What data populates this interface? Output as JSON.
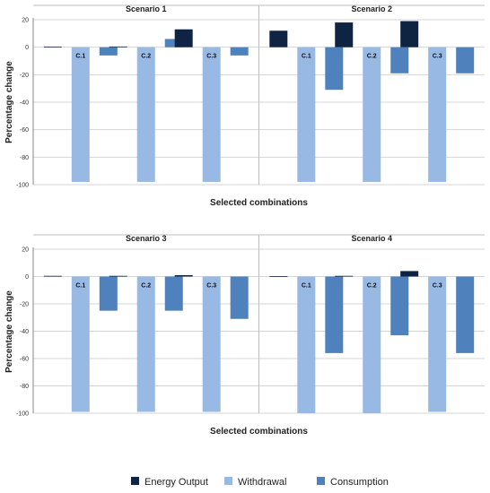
{
  "colors": {
    "energy_output": "#0f2443",
    "withdrawal": "#98b9e3",
    "consumption": "#4f81bd",
    "gridline": "#d4d4d4",
    "axis": "#888888",
    "divider": "#bdbdbd"
  },
  "legend": {
    "items": [
      {
        "label": "Energy Output",
        "color_key": "energy_output"
      },
      {
        "label": "Withdrawal",
        "color_key": "withdrawal"
      },
      {
        "label": "Consumption",
        "color_key": "consumption"
      }
    ]
  },
  "chart_data": [
    {
      "type": "bar",
      "ylabel": "Percentage change",
      "xlabel": "Selected combinations",
      "ylim": [
        -100,
        20
      ],
      "yticks": [
        20,
        0,
        -20,
        -40,
        -60,
        -80,
        -100
      ],
      "grid": true,
      "legend_position": "bottom",
      "panels": [
        {
          "title": "Scenario 1",
          "categories": [
            "C.1",
            "C.2",
            "C.3"
          ],
          "series": [
            {
              "name": "Energy Output",
              "values": [
                0.3,
                0.5,
                13
              ]
            },
            {
              "name": "Withdrawal",
              "values": [
                -98,
                -98,
                -98
              ]
            },
            {
              "name": "Consumption",
              "values": [
                -6,
                6,
                -6
              ]
            }
          ]
        },
        {
          "title": "Scenario 2",
          "categories": [
            "C.1",
            "C.2",
            "C.3"
          ],
          "series": [
            {
              "name": "Energy Output",
              "values": [
                12,
                18,
                19
              ]
            },
            {
              "name": "Withdrawal",
              "values": [
                -98,
                -98,
                -98
              ]
            },
            {
              "name": "Consumption",
              "values": [
                -31,
                -19,
                -19
              ]
            }
          ]
        }
      ]
    },
    {
      "type": "bar",
      "ylabel": "Percentage change",
      "xlabel": "Selected combinations",
      "ylim": [
        -100,
        20
      ],
      "yticks": [
        20,
        0,
        -20,
        -40,
        -60,
        -80,
        -100
      ],
      "grid": true,
      "legend_position": "bottom",
      "panels": [
        {
          "title": "Scenario 3",
          "categories": [
            "C.1",
            "C.2",
            "C.3"
          ],
          "series": [
            {
              "name": "Energy Output",
              "values": [
                0.5,
                0.5,
                1
              ]
            },
            {
              "name": "Withdrawal",
              "values": [
                -99,
                -99,
                -99
              ]
            },
            {
              "name": "Consumption",
              "values": [
                -25,
                -25,
                -31
              ]
            }
          ]
        },
        {
          "title": "Scenario 4",
          "categories": [
            "C.1",
            "C.2",
            "C.3"
          ],
          "series": [
            {
              "name": "Energy Output",
              "values": [
                0.2,
                0.5,
                4
              ]
            },
            {
              "name": "Withdrawal",
              "values": [
                -100,
                -100,
                -99
              ]
            },
            {
              "name": "Consumption",
              "values": [
                -56,
                -43,
                -56
              ]
            }
          ]
        }
      ]
    }
  ]
}
